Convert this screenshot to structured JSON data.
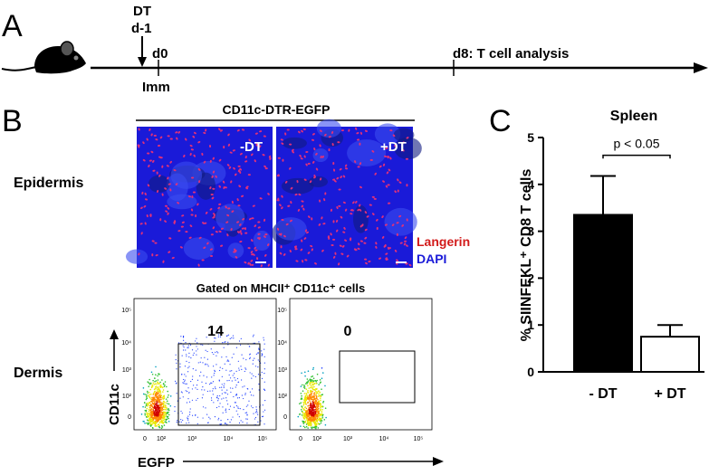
{
  "panel_a": {
    "label": "A",
    "dt": "DT",
    "dt_day": "d-1",
    "d0": "d0",
    "imm": "Imm",
    "d8": "d8: T cell analysis"
  },
  "panel_b": {
    "label": "B",
    "strain": "CD11c-DTR-EGFP",
    "epidermis": "Epidermis",
    "minus_dt": "-DT",
    "plus_dt": "+DT",
    "langerin": "Langerin",
    "dapi": "DAPI",
    "gate_title": "Gated on MHCII⁺ CD11c⁺ cells",
    "dermis": "Dermis",
    "y_axis": "CD11c",
    "x_axis": "EGFP",
    "axis_ticks": [
      "0",
      "10²",
      "10³",
      "10⁴",
      "10⁵"
    ],
    "gate_values": [
      14,
      0
    ]
  },
  "chart_data": {
    "type": "bar",
    "panel_label": "C",
    "title": "Spleen",
    "ylabel": "% SIINFEKL⁺ CD8 T cells",
    "categories": [
      "- DT",
      "+ DT"
    ],
    "values": [
      3.35,
      0.75
    ],
    "errors": [
      0.83,
      0.25
    ],
    "colors": [
      "#000000",
      "#ffffff"
    ],
    "ylim": [
      0,
      5
    ],
    "yticks": [
      0,
      1,
      2,
      3,
      4,
      5
    ],
    "annotation": "p < 0.05"
  }
}
